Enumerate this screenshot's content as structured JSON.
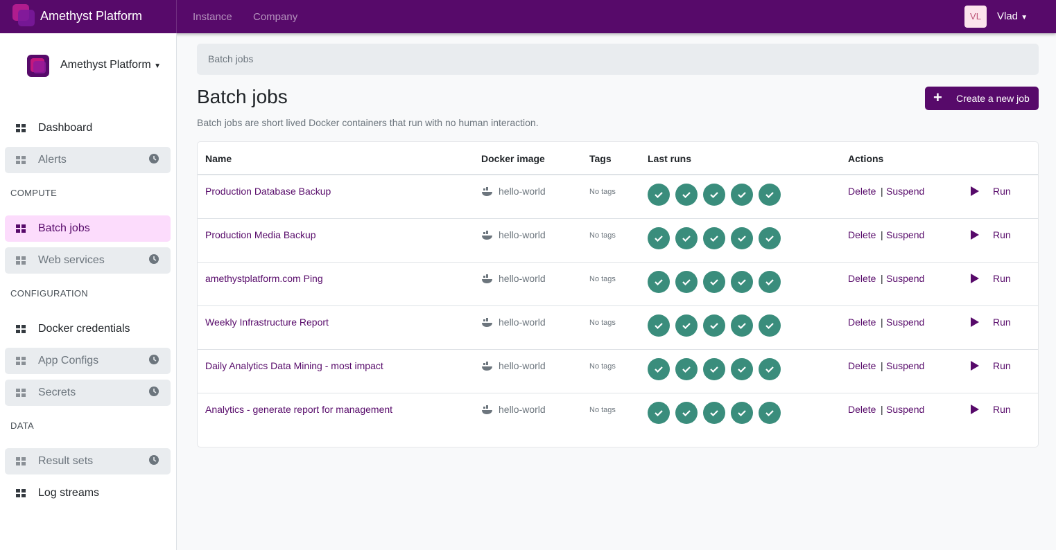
{
  "navbar": {
    "brand": "Amethyst Platform",
    "links": [
      "Instance",
      "Company"
    ],
    "avatar": "VL",
    "user": "Vlad"
  },
  "sidebar": {
    "organization": "Amethyst Platform",
    "sections": [
      {
        "items": [
          {
            "label": "Dashboard"
          },
          {
            "label": "Alerts",
            "disabled": true
          }
        ]
      },
      {
        "title": "COMPUTE",
        "items": [
          {
            "label": "Batch jobs",
            "active": true
          },
          {
            "label": "Web services",
            "disabled": true
          }
        ]
      },
      {
        "title": "CONFIGURATION",
        "items": [
          {
            "label": "Docker credentials"
          },
          {
            "label": "App Configs",
            "disabled": true
          },
          {
            "label": "Secrets",
            "disabled": true
          }
        ]
      },
      {
        "title": "DATA",
        "items": [
          {
            "label": "Result sets",
            "disabled": true
          },
          {
            "label": "Log streams"
          }
        ]
      }
    ]
  },
  "breadcrumb": "Batch jobs",
  "header": {
    "title": "Batch jobs",
    "description": "Batch jobs are short lived Docker containers that run with no human interaction.",
    "button": "Create a new job"
  },
  "table": {
    "columns": [
      "Name",
      "Docker image",
      "Tags",
      "Last runs",
      "Actions"
    ],
    "separator": "|",
    "rows": [
      {
        "name": "Production Database Backup",
        "image": "hello-world",
        "tags": "No tags",
        "actions": [
          "Delete",
          "Suspend",
          "Run"
        ]
      },
      {
        "name": "Production Media Backup",
        "image": "hello-world",
        "tags": "No tags",
        "actions": [
          "Delete",
          "Suspend",
          "Run"
        ]
      },
      {
        "name": "amethystplatform.com Ping",
        "image": "hello-world",
        "tags": "No tags",
        "actions": [
          "Delete",
          "Suspend",
          "Run"
        ]
      },
      {
        "name": "Weekly Infrastructure Report",
        "image": "hello-world",
        "tags": "No tags",
        "actions": [
          "Delete",
          "Suspend",
          "Run"
        ]
      },
      {
        "name": "Daily Analytics Data Mining - most impact",
        "image": "hello-world",
        "tags": "No tags",
        "actions": [
          "Delete",
          "Suspend",
          "Run"
        ]
      },
      {
        "name": "Analytics - generate report for management",
        "image": "hello-world",
        "tags": "No tags",
        "actions": [
          "Delete",
          "Suspend",
          "Run"
        ]
      }
    ]
  }
}
